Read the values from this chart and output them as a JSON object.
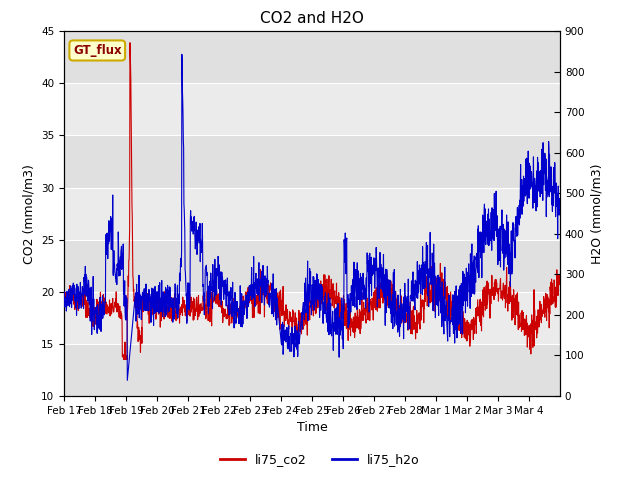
{
  "title": "CO2 and H2O",
  "xlabel": "Time",
  "ylabel_left": "CO2 (mmol/m3)",
  "ylabel_right": "H2O (mmol/m3)",
  "ylim_left": [
    10,
    45
  ],
  "ylim_right": [
    0,
    900
  ],
  "yticks_left": [
    10,
    15,
    20,
    25,
    30,
    35,
    40,
    45
  ],
  "yticks_right": [
    0,
    100,
    200,
    300,
    400,
    500,
    600,
    700,
    800,
    900
  ],
  "xticklabels": [
    "Feb 17",
    "Feb 18",
    "Feb 19",
    "Feb 20",
    "Feb 21",
    "Feb 22",
    "Feb 23",
    "Feb 24",
    "Feb 25",
    "Feb 26",
    "Feb 27",
    "Feb 28",
    "Mar 1",
    "Mar 2",
    "Mar 3",
    "Mar 4"
  ],
  "color_co2": "#cc0000",
  "color_h2o": "#0000cc",
  "label_co2": "li75_co2",
  "label_h2o": "li75_h2o",
  "gt_flux_label": "GT_flux",
  "background_color": "#ffffff",
  "band_color_light": "#ebebeb",
  "band_color_mid": "#e0e0e0",
  "title_fontsize": 11,
  "axis_label_fontsize": 9,
  "tick_fontsize": 7.5,
  "linewidth": 0.8
}
